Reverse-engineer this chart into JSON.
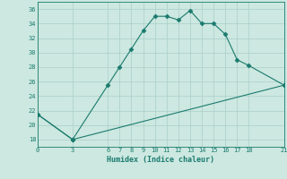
{
  "xlabel": "Humidex (Indice chaleur)",
  "background_color": "#cce8e0",
  "line_color": "#1a7a6e",
  "grid_color": "#aacfc8",
  "xlim": [
    0,
    21
  ],
  "ylim": [
    17,
    37
  ],
  "yticks": [
    18,
    20,
    22,
    24,
    26,
    28,
    30,
    32,
    34,
    36
  ],
  "xticks": [
    0,
    3,
    6,
    7,
    8,
    9,
    10,
    11,
    12,
    13,
    14,
    15,
    16,
    17,
    18,
    21
  ],
  "series1_x": [
    0,
    3,
    6,
    7,
    8,
    9,
    10,
    11,
    12,
    13,
    14,
    15,
    16,
    17,
    18,
    21
  ],
  "series1_y": [
    21.5,
    18.0,
    25.5,
    28.0,
    30.5,
    33.0,
    35.0,
    35.0,
    34.5,
    35.8,
    34.0,
    34.0,
    32.5,
    29.0,
    28.2,
    25.5
  ],
  "series2_x": [
    0,
    3,
    21
  ],
  "series2_y": [
    21.5,
    18.0,
    25.5
  ],
  "font_family": "monospace",
  "markersize": 2.5
}
